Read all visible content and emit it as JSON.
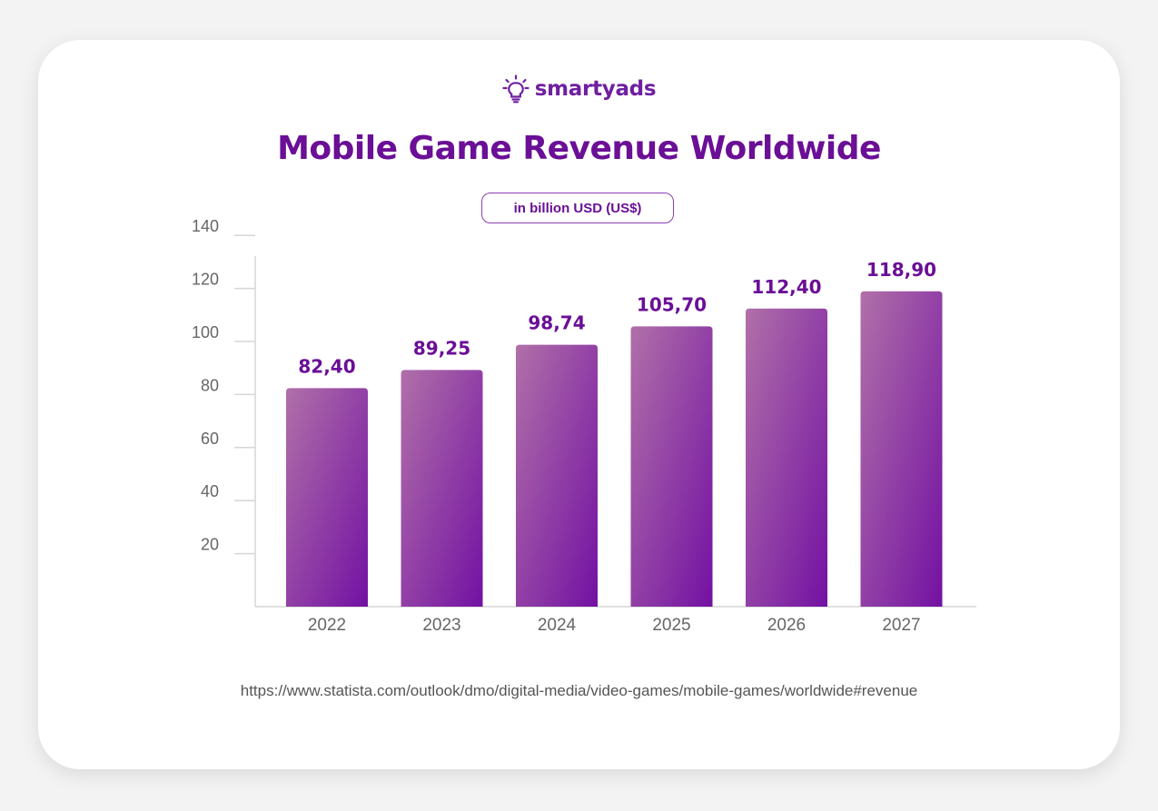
{
  "brand": {
    "name": "smartyads",
    "icon": "lightbulb-icon",
    "color": "#6f1fa0"
  },
  "colors": {
    "title": "#6a0f96",
    "bar_top": "#b070a8",
    "bar_bottom": "#7311a3",
    "value_label": "#6a0f96",
    "axis_text": "#666666",
    "axis_line": "#d6d6d6"
  },
  "chart_data": {
    "type": "bar",
    "title": "Mobile Game Revenue Worldwide",
    "subtitle": "in billion USD (US$)",
    "categories": [
      "2022",
      "2023",
      "2024",
      "2025",
      "2026",
      "2027"
    ],
    "values": [
      82.4,
      89.25,
      98.74,
      105.7,
      112.4,
      118.9
    ],
    "value_labels": [
      "82,40",
      "89,25",
      "98,74",
      "105,70",
      "112,40",
      "118,90"
    ],
    "y_ticks": [
      20,
      40,
      60,
      80,
      100,
      120,
      140
    ],
    "ylim": [
      0,
      140
    ],
    "xlabel": "",
    "ylabel": "",
    "grid": false
  },
  "source": "https://www.statista.com/outlook/dmo/digital-media/video-games/mobile-games/worldwide#revenue"
}
